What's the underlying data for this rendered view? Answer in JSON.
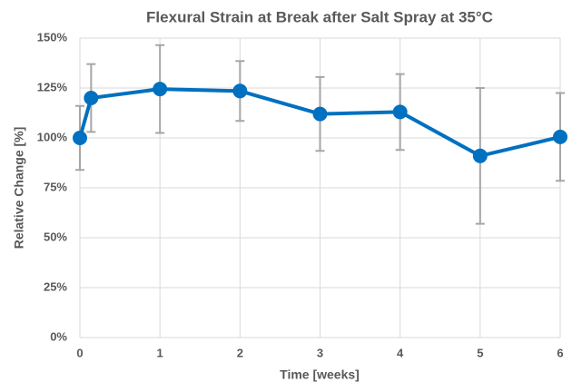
{
  "chart_data": {
    "type": "line",
    "title": "Flexural Strain at Break after Salt Spray at 35°C",
    "x_label": "Time [weeks]",
    "y_label": "Relative Change [%]",
    "x": [
      0,
      0.14,
      1,
      2,
      3,
      4,
      5,
      6
    ],
    "series": [
      {
        "name": "Flexural Strain at Break",
        "color": "#0070c0",
        "values": [
          100,
          120,
          124.5,
          123.5,
          112,
          113,
          91,
          100.5
        ],
        "errors": [
          16,
          17,
          22,
          15,
          18.5,
          19,
          34,
          22
        ]
      }
    ],
    "error_color": "#a6a6a6",
    "xlim": [
      0,
      6
    ],
    "xticks": [
      0,
      1,
      2,
      3,
      4,
      5,
      6
    ],
    "ylim": [
      0,
      150
    ],
    "yticks": [
      {
        "value": 0,
        "label": "0%"
      },
      {
        "value": 25,
        "label": "25%"
      },
      {
        "value": 50,
        "label": "50%"
      },
      {
        "value": 75,
        "label": "75%"
      },
      {
        "value": 100,
        "label": "100%"
      },
      {
        "value": 125,
        "label": "125%"
      },
      {
        "value": 150,
        "label": "150%"
      }
    ],
    "grid": true
  }
}
